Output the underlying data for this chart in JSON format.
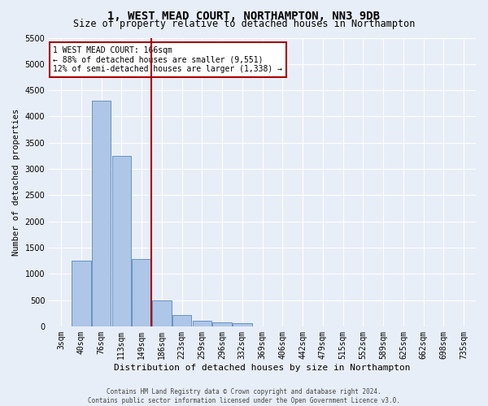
{
  "title": "1, WEST MEAD COURT, NORTHAMPTON, NN3 9DB",
  "subtitle": "Size of property relative to detached houses in Northampton",
  "xlabel": "Distribution of detached houses by size in Northampton",
  "ylabel": "Number of detached properties",
  "footer_line1": "Contains HM Land Registry data © Crown copyright and database right 2024.",
  "footer_line2": "Contains public sector information licensed under the Open Government Licence v3.0.",
  "categories": [
    "3sqm",
    "40sqm",
    "76sqm",
    "113sqm",
    "149sqm",
    "186sqm",
    "223sqm",
    "259sqm",
    "296sqm",
    "332sqm",
    "369sqm",
    "406sqm",
    "442sqm",
    "479sqm",
    "515sqm",
    "552sqm",
    "589sqm",
    "625sqm",
    "662sqm",
    "698sqm",
    "735sqm"
  ],
  "values": [
    0,
    1250,
    4300,
    3250,
    1280,
    490,
    215,
    110,
    75,
    60,
    0,
    0,
    0,
    0,
    0,
    0,
    0,
    0,
    0,
    0,
    0
  ],
  "bar_color": "#aec6e8",
  "bar_edge_color": "#5588bb",
  "vline_x": 4.5,
  "vline_color": "#aa0000",
  "annotation_text": "1 WEST MEAD COURT: 166sqm\n← 88% of detached houses are smaller (9,551)\n12% of semi-detached houses are larger (1,338) →",
  "annotation_box_color": "#ffffff",
  "annotation_box_edge_color": "#aa0000",
  "ylim": [
    0,
    5500
  ],
  "yticks": [
    0,
    500,
    1000,
    1500,
    2000,
    2500,
    3000,
    3500,
    4000,
    4500,
    5000,
    5500
  ],
  "background_color": "#e8eef8",
  "grid_color": "#ffffff",
  "title_fontsize": 10,
  "subtitle_fontsize": 8.5,
  "ylabel_fontsize": 7.5,
  "xlabel_fontsize": 8,
  "tick_fontsize": 7,
  "annotation_fontsize": 7,
  "footer_fontsize": 5.5
}
